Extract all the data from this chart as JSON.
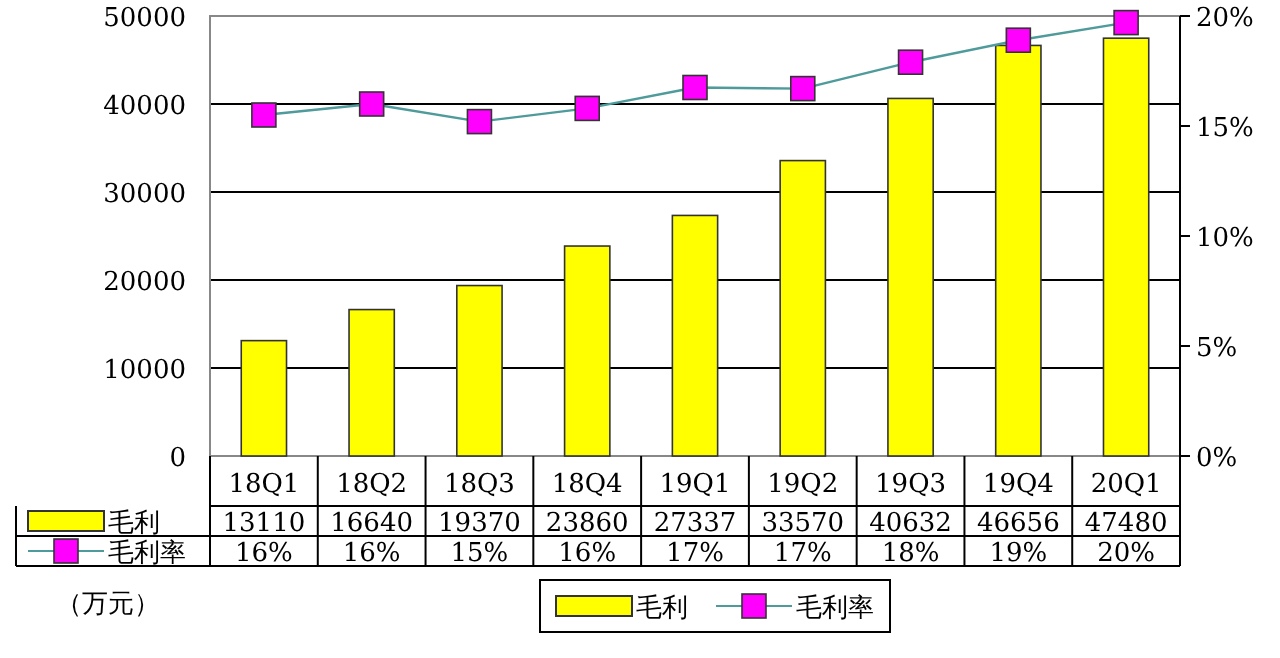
{
  "chart_data": {
    "type": "bar",
    "categories": [
      "18Q1",
      "18Q2",
      "18Q3",
      "18Q4",
      "19Q1",
      "19Q2",
      "19Q3",
      "19Q4",
      "20Q1"
    ],
    "series": [
      {
        "name": "毛利",
        "color": "#ffff00",
        "values": [
          13110,
          16640,
          19370,
          23860,
          27337,
          33570,
          40632,
          46656,
          47480
        ],
        "value_labels": [
          "13110",
          "16640",
          "19370",
          "23860",
          "27337",
          "33570",
          "40632",
          "46656",
          "47480"
        ]
      },
      {
        "name": "毛利率",
        "type": "line",
        "axis": "y2",
        "color": "#ff00ff",
        "marker": "square",
        "values": [
          15.5,
          16.0,
          15.2,
          15.8,
          16.75,
          16.7,
          17.9,
          18.9,
          19.7
        ],
        "value_labels": [
          "16%",
          "16%",
          "15%",
          "16%",
          "17%",
          "17%",
          "18%",
          "19%",
          "20%"
        ]
      }
    ],
    "ylim": [
      0,
      50000
    ],
    "yticks": [
      0,
      10000,
      20000,
      30000,
      40000,
      50000
    ],
    "y2lim": [
      0,
      20
    ],
    "y2ticks": [
      {
        "value": 0,
        "label": "0%"
      },
      {
        "value": 5,
        "label": "5%"
      },
      {
        "value": 10,
        "label": "10%"
      },
      {
        "value": 15,
        "label": "15%"
      },
      {
        "value": 20,
        "label": "20%"
      }
    ],
    "grid": "y",
    "legend": "bottom",
    "annotations": [
      "（万元）"
    ]
  }
}
